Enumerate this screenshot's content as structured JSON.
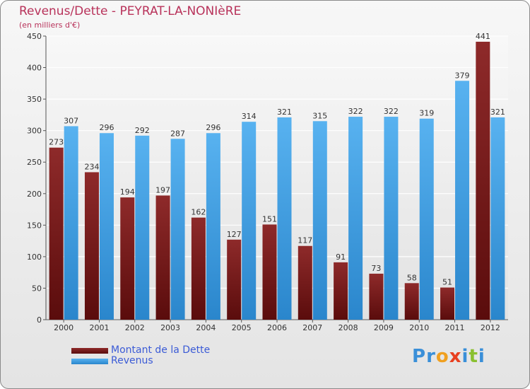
{
  "header": {
    "title": "Revenus/Dette - PEYRAT-LA-NONIèRE",
    "subtitle": "(en milliers d'€)"
  },
  "legend": {
    "dette_label": "Montant de la Dette",
    "revenus_label": "Revenus"
  },
  "logo": {
    "text": "Proxiti"
  },
  "colors": {
    "dette": "#7a1a1a",
    "revenus": "#3a9ce0",
    "title": "#b8325a",
    "legend_text": "#3b5bd6"
  },
  "chart_data": {
    "type": "bar",
    "title": "Revenus/Dette - PEYRAT-LA-NONIèRE",
    "subtitle": "(en milliers d'€)",
    "xlabel": "",
    "ylabel": "",
    "ylim": [
      0,
      450
    ],
    "yticks": [
      0,
      50,
      100,
      150,
      200,
      250,
      300,
      350,
      400,
      450
    ],
    "grid": true,
    "legend_position": "bottom-left",
    "categories": [
      "2000",
      "2001",
      "2002",
      "2003",
      "2004",
      "2005",
      "2006",
      "2007",
      "2008",
      "2009",
      "2010",
      "2011",
      "2012"
    ],
    "series": [
      {
        "name": "Montant de la Dette",
        "values": [
          273,
          234,
          194,
          197,
          162,
          127,
          151,
          117,
          91,
          73,
          58,
          51,
          441
        ]
      },
      {
        "name": "Revenus",
        "values": [
          307,
          296,
          292,
          287,
          296,
          314,
          321,
          315,
          322,
          322,
          319,
          379,
          321
        ]
      }
    ]
  }
}
